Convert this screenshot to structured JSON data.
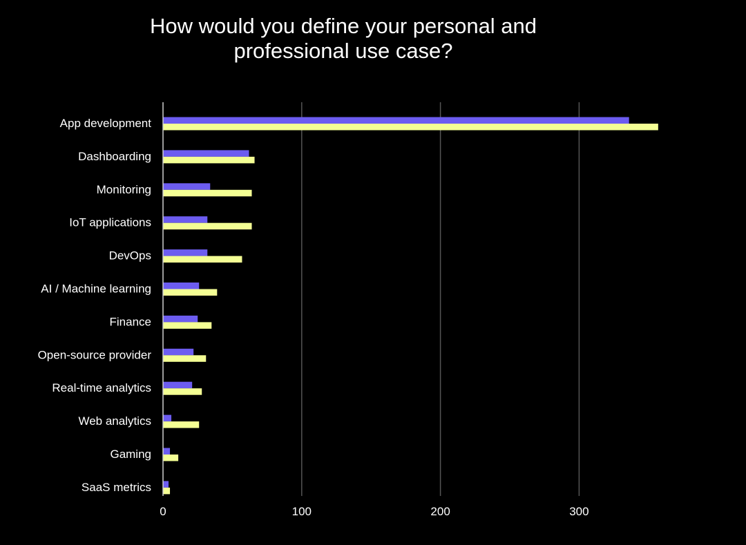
{
  "chart_data": {
    "type": "bar",
    "orientation": "horizontal",
    "title": "How would you define your personal and professional use case?",
    "title_lines": [
      "How would you define your personal and",
      "professional use case?"
    ],
    "xlabel": "",
    "ylabel": "",
    "xlim": [
      0,
      360
    ],
    "xticks": [
      0,
      100,
      200,
      300
    ],
    "grid": true,
    "categories": [
      "App development",
      "Dashboarding",
      "Monitoring",
      "IoT applications",
      "DevOps",
      "AI / Machine learning",
      "Finance",
      "Open-source provider",
      "Real-time analytics",
      "Web analytics",
      "Gaming",
      "SaaS metrics"
    ],
    "series": [
      {
        "color": "#6c5cf0",
        "values": [
          336,
          62,
          34,
          32,
          32,
          26,
          25,
          22,
          21,
          6,
          5,
          4
        ]
      },
      {
        "color": "#f4ff94",
        "values": [
          357,
          66,
          64,
          64,
          57,
          39,
          35,
          31,
          28,
          26,
          11,
          5
        ]
      }
    ]
  }
}
